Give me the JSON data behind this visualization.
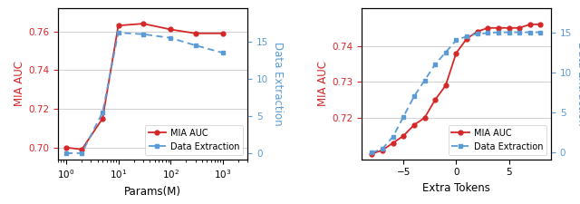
{
  "left": {
    "params_x": [
      1,
      2,
      5,
      10,
      30,
      100,
      300,
      1000
    ],
    "mia_auc": [
      0.7,
      0.699,
      0.715,
      0.763,
      0.764,
      0.761,
      0.759,
      0.759
    ],
    "data_extraction": [
      0.0,
      0.0,
      5.5,
      16.2,
      16.0,
      15.5,
      14.5,
      13.5
    ],
    "xlabel": "Params(M)",
    "ylabel_left": "MIA AUC",
    "ylabel_right": "Data Extraction",
    "ylim_left": [
      0.694,
      0.772
    ],
    "ylim_right": [
      -0.8,
      19.5
    ],
    "yticks_left": [
      0.7,
      0.72,
      0.74,
      0.76
    ],
    "yticks_right": [
      0,
      5,
      10,
      15
    ],
    "xlim": [
      0.7,
      3000
    ]
  },
  "right": {
    "extra_tokens_x": [
      -8,
      -7,
      -6,
      -5,
      -4,
      -3,
      -2,
      -1,
      0,
      1,
      2,
      3,
      4,
      5,
      6,
      7,
      8
    ],
    "mia_auc": [
      0.71,
      0.711,
      0.713,
      0.715,
      0.718,
      0.72,
      0.725,
      0.729,
      0.738,
      0.742,
      0.744,
      0.745,
      0.745,
      0.745,
      0.745,
      0.746,
      0.746
    ],
    "data_extraction": [
      0.0,
      0.5,
      2.0,
      4.5,
      7.0,
      9.0,
      11.0,
      12.5,
      14.0,
      14.5,
      14.8,
      14.9,
      15.0,
      15.0,
      15.0,
      15.0,
      15.0
    ],
    "xlabel": "Extra Tokens",
    "ylabel_left": "MIA AUC",
    "ylabel_right": "Data Extraction",
    "ylim_left": [
      0.7085,
      0.7505
    ],
    "ylim_right": [
      -0.8,
      18.0
    ],
    "yticks_left": [
      0.72,
      0.73,
      0.74
    ],
    "yticks_right": [
      0,
      5,
      10,
      15
    ],
    "xticks": [
      -5,
      0,
      5
    ],
    "xlim": [
      -9,
      9
    ]
  },
  "mia_color": "#d62728",
  "de_color": "#5b9bd5",
  "mia_label": "MIA AUC",
  "de_label": "Data Extraction",
  "legend_fontsize": 7.0,
  "label_fontsize": 8.5,
  "tick_fontsize": 7.5,
  "grid_color": "#d0d0d0",
  "figsize": [
    6.4,
    2.25
  ],
  "dpi": 100
}
